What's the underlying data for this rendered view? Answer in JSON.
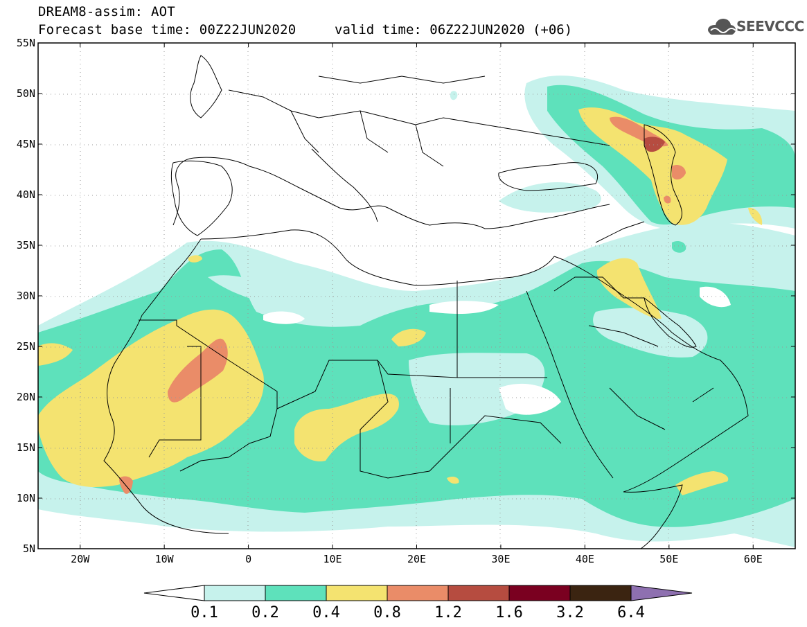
{
  "header": {
    "title": "DREAM8-assim: AOT",
    "base_time": "Forecast base time: 00Z22JUN2020",
    "valid_time": "valid time: 06Z22JUN2020 (+06)",
    "logo_text": "SEEVCCC",
    "logo_icon": "cloud-icon"
  },
  "map": {
    "lon_range": [
      -25,
      65
    ],
    "lat_range": [
      5,
      55
    ],
    "lat_ticks": [
      "55N",
      "50N",
      "45N",
      "40N",
      "35N",
      "30N",
      "25N",
      "20N",
      "15N",
      "10N",
      "5N"
    ],
    "lon_ticks": [
      "20W",
      "10W",
      "0",
      "10E",
      "20E",
      "30E",
      "40E",
      "50E",
      "60E"
    ]
  },
  "colorbar": {
    "labels": [
      "0.1",
      "0.2",
      "0.4",
      "0.8",
      "1.2",
      "1.6",
      "3.2",
      "6.4"
    ],
    "colors": [
      "#c6f2ec",
      "#5ee1bb",
      "#f4e370",
      "#ea8c68",
      "#b64c40",
      "#7a0020",
      "#3b2411",
      "#8e70b0"
    ],
    "under_color": "#ffffff"
  }
}
